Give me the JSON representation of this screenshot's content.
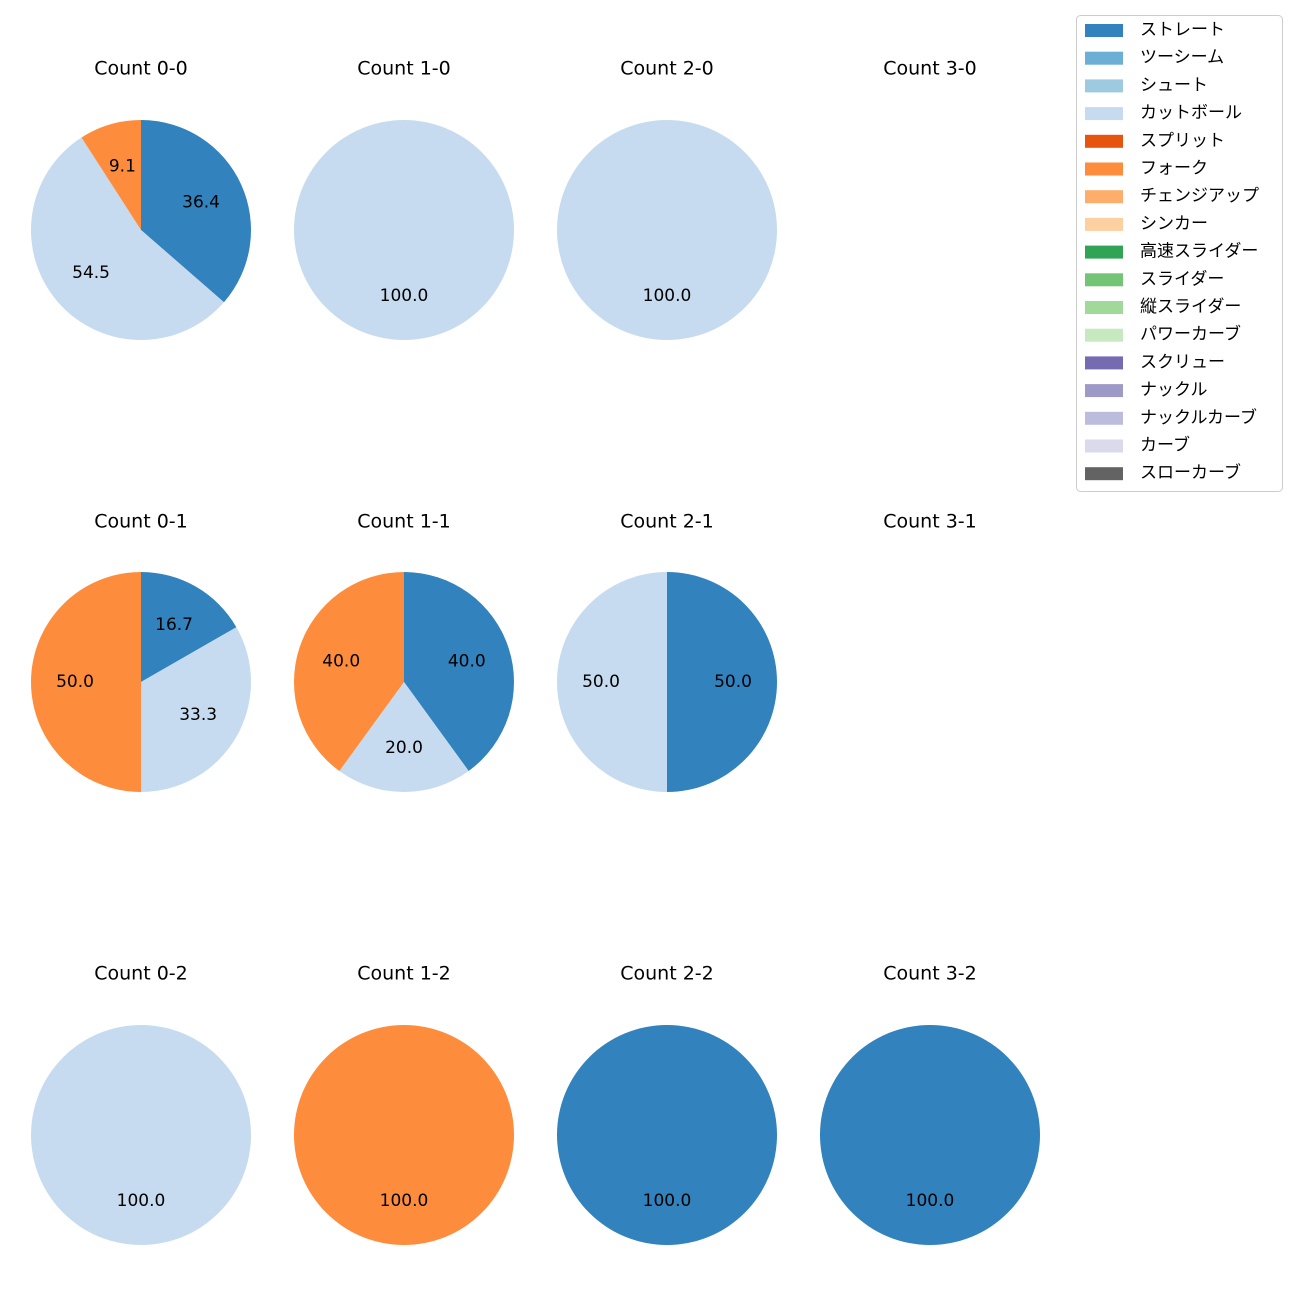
{
  "chart_data": {
    "type": "pie",
    "categories": [
      "ストレート",
      "ツーシーム",
      "シュート",
      "カットボール",
      "スプリット",
      "フォーク",
      "チェンジアップ",
      "シンカー",
      "高速スライダー",
      "スライダー",
      "縦スライダー",
      "パワーカーブ",
      "スクリュー",
      "ナックル",
      "ナックルカーブ",
      "カーブ",
      "スローカーブ"
    ],
    "colors": [
      "#3182bd",
      "#6baed6",
      "#9ecae1",
      "#c6dbef",
      "#e6550d",
      "#fd8d3c",
      "#fdae6b",
      "#fdd0a2",
      "#31a354",
      "#74c476",
      "#a1d99b",
      "#c7e9c0",
      "#756bb1",
      "#9e9ac8",
      "#bcbddc",
      "#dadaeb",
      "#636363"
    ],
    "legend_position": "top-right",
    "subplots": [
      {
        "title": "Count 0-0",
        "slices": [
          {
            "category": "ストレート",
            "value": 36.4
          },
          {
            "category": "カットボール",
            "value": 54.5
          },
          {
            "category": "フォーク",
            "value": 9.1
          }
        ]
      },
      {
        "title": "Count 1-0",
        "slices": [
          {
            "category": "カットボール",
            "value": 100.0
          }
        ]
      },
      {
        "title": "Count 2-0",
        "slices": [
          {
            "category": "カットボール",
            "value": 100.0
          }
        ]
      },
      {
        "title": "Count 3-0",
        "slices": []
      },
      {
        "title": "Count 0-1",
        "slices": [
          {
            "category": "ストレート",
            "value": 16.7
          },
          {
            "category": "カットボール",
            "value": 33.3
          },
          {
            "category": "フォーク",
            "value": 50.0
          }
        ]
      },
      {
        "title": "Count 1-1",
        "slices": [
          {
            "category": "ストレート",
            "value": 40.0
          },
          {
            "category": "カットボール",
            "value": 20.0
          },
          {
            "category": "フォーク",
            "value": 40.0
          }
        ]
      },
      {
        "title": "Count 2-1",
        "slices": [
          {
            "category": "ストレート",
            "value": 50.0
          },
          {
            "category": "カットボール",
            "value": 50.0
          }
        ]
      },
      {
        "title": "Count 3-1",
        "slices": []
      },
      {
        "title": "Count 0-2",
        "slices": [
          {
            "category": "カットボール",
            "value": 100.0
          }
        ]
      },
      {
        "title": "Count 1-2",
        "slices": [
          {
            "category": "フォーク",
            "value": 100.0
          }
        ]
      },
      {
        "title": "Count 2-2",
        "slices": [
          {
            "category": "ストレート",
            "value": 100.0
          }
        ]
      },
      {
        "title": "Count 3-2",
        "slices": [
          {
            "category": "ストレート",
            "value": 100.0
          }
        ]
      }
    ]
  }
}
